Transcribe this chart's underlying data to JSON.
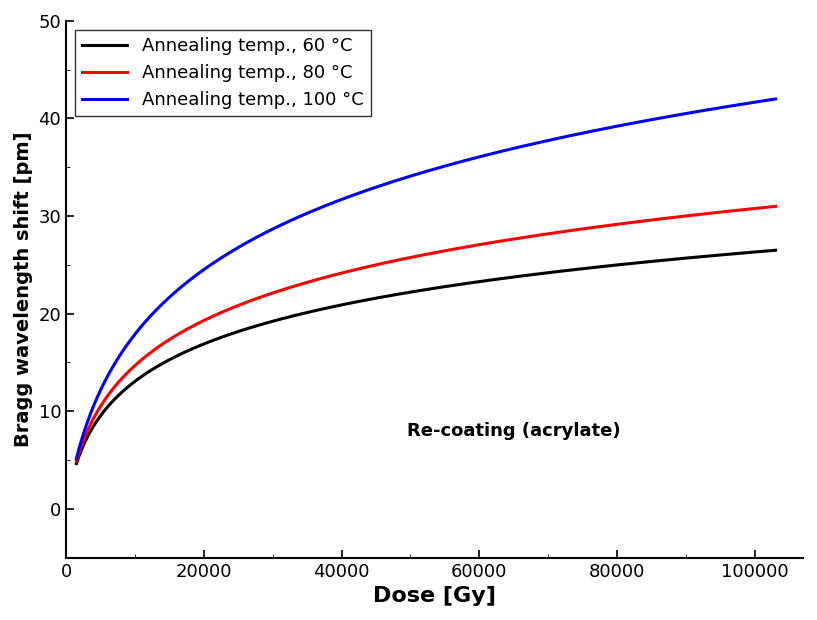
{
  "title": "",
  "xlabel": "Dose [Gy]",
  "ylabel": "Bragg wavelength shift [pm]",
  "annotation": "Re-coating (acrylate)",
  "xlim": [
    0,
    107000
  ],
  "ylim": [
    -5,
    50
  ],
  "xticks": [
    0,
    20000,
    40000,
    60000,
    80000,
    100000
  ],
  "yticks": [
    0,
    10,
    20,
    30,
    40,
    50
  ],
  "curves": [
    {
      "label": "Annealing temp., 60 °C",
      "color": "#000000",
      "A": 26.5,
      "xh": 1300,
      "x_start": 1500
    },
    {
      "label": "Annealing temp., 80 °C",
      "color": "#ff0000",
      "A": 31.0,
      "xh": 1600,
      "x_start": 1500
    },
    {
      "label": "Annealing temp., 100 °C",
      "color": "#0000ff",
      "A": 42.0,
      "xh": 2600,
      "x_start": 1500
    }
  ],
  "x_max": 103000,
  "legend_loc": "upper left",
  "xlabel_fontsize": 16,
  "ylabel_fontsize": 14,
  "tick_fontsize": 13,
  "legend_fontsize": 13,
  "annotation_fontsize": 13,
  "linewidth": 2.2,
  "background_color": "#ffffff"
}
